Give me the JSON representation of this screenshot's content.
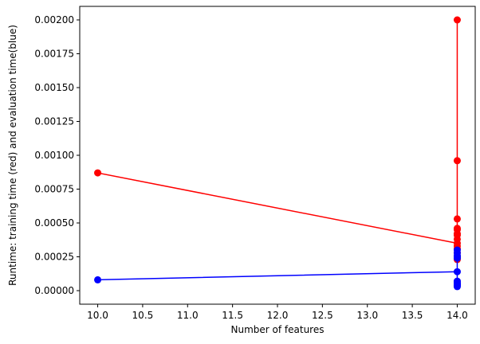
{
  "chart_data": {
    "type": "line",
    "title": "",
    "xlabel": "Number of features",
    "ylabel": "Runtime: training time (red) and evaluation time(blue)",
    "xlim": [
      9.8,
      14.2
    ],
    "ylim": [
      -0.0001,
      0.0021
    ],
    "grid": false,
    "x_ticks": [
      10.0,
      10.5,
      11.0,
      11.5,
      12.0,
      12.5,
      13.0,
      13.5,
      14.0
    ],
    "x_tick_labels": [
      "10.0",
      "10.5",
      "11.0",
      "11.5",
      "12.0",
      "12.5",
      "13.0",
      "13.5",
      "14.0"
    ],
    "y_ticks": [
      0,
      0.00025,
      0.0005,
      0.00075,
      0.001,
      0.00125,
      0.0015,
      0.00175,
      0.002
    ],
    "y_tick_labels": [
      "0.00000",
      "0.00025",
      "0.00050",
      "0.00075",
      "0.00100",
      "0.00125",
      "0.00150",
      "0.00175",
      "0.00200"
    ],
    "series": [
      {
        "color": "#ff0000",
        "marker": "circle",
        "x": [
          10,
          14,
          14,
          14,
          14,
          14,
          14,
          14,
          14,
          14,
          14,
          14,
          14,
          14,
          14,
          14
        ],
        "y": [
          0.00087,
          0.00035,
          0.00025,
          0.00023,
          0.00028,
          0.00031,
          0.00038,
          0.00041,
          0.00042,
          0.00045,
          0.00046,
          0.00053,
          0.00096,
          0.002,
          0.00033,
          0.00024
        ]
      },
      {
        "color": "#0000ff",
        "marker": "circle",
        "x": [
          10,
          14,
          14,
          14,
          14,
          14,
          14,
          14,
          14,
          14,
          14,
          14,
          14,
          14
        ],
        "y": [
          8e-05,
          0.00014,
          0.0003,
          0.00028,
          0.00026,
          0.00025,
          0.00024,
          5e-05,
          4e-05,
          6e-05,
          7e-05,
          3e-05,
          4e-05,
          5e-05
        ]
      }
    ]
  }
}
